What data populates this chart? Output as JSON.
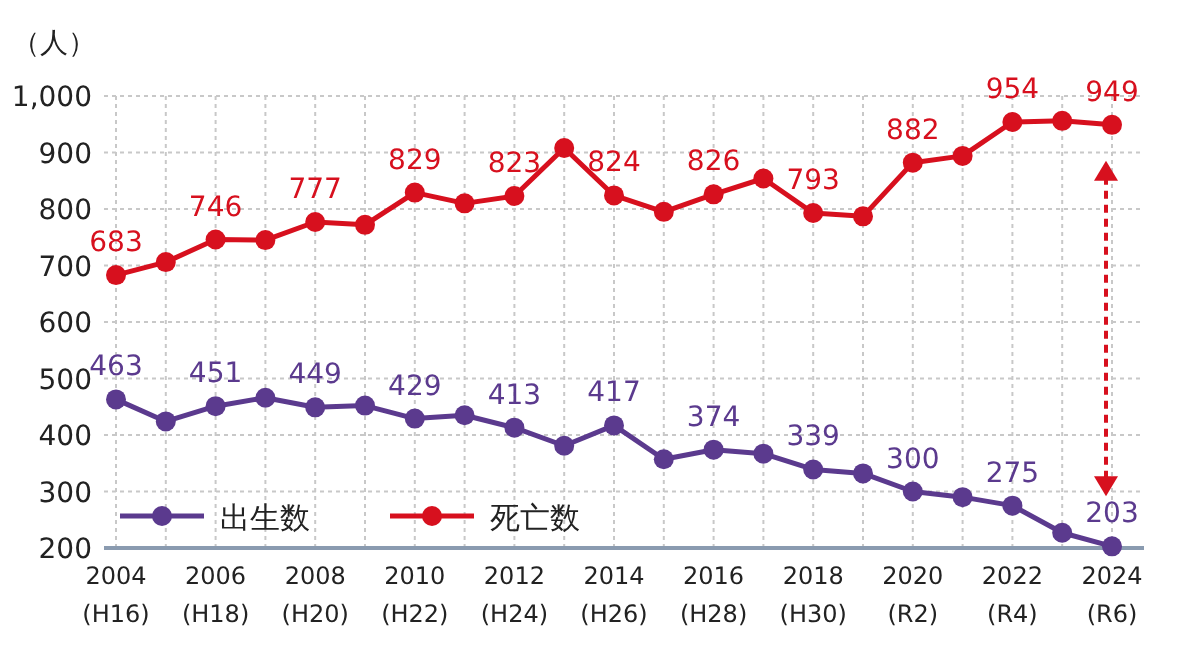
{
  "chart_data": {
    "type": "line",
    "ylabel": "（人）",
    "categories": [
      "2004\n(H16)",
      null,
      "2006\n(H18)",
      null,
      "2008\n(H20)",
      null,
      "2010\n(H22)",
      null,
      "2012\n(H24)",
      null,
      "2014\n(H26)",
      null,
      "2016\n(H28)",
      null,
      "2018\n(H30)",
      null,
      "2020\n(R2)",
      null,
      "2022\n(R4)",
      null,
      "2024\n(R6)"
    ],
    "series": [
      {
        "name": "出生数",
        "color": "#5b3a8e",
        "values": [
          463,
          424,
          451,
          466,
          449,
          452,
          429,
          435,
          413,
          381,
          417,
          357,
          374,
          367,
          339,
          332,
          300,
          290,
          275,
          227,
          203
        ],
        "value_labels": [
          "463",
          null,
          "451",
          null,
          "449",
          null,
          "429",
          null,
          "413",
          null,
          "417",
          null,
          "374",
          null,
          "339",
          null,
          "300",
          null,
          "275",
          null,
          "203"
        ]
      },
      {
        "name": "死亡数",
        "color": "#d7101e",
        "values": [
          683,
          706,
          746,
          745,
          777,
          772,
          829,
          810,
          823,
          908,
          824,
          795,
          826,
          854,
          793,
          787,
          882,
          894,
          954,
          956,
          949
        ],
        "value_labels": [
          "683",
          null,
          "746",
          null,
          "777",
          null,
          "829",
          null,
          "823",
          null,
          "824",
          null,
          "826",
          null,
          "793",
          null,
          "882",
          null,
          "954",
          null,
          "949"
        ]
      }
    ],
    "ylim": [
      200,
      1000
    ],
    "yticks": [
      200,
      300,
      400,
      500,
      600,
      700,
      800,
      900,
      {
        "value": 1000,
        "label": "1,000"
      }
    ],
    "grid": true,
    "legend": "bottom left",
    "marker": "circle",
    "line_style": "solid"
  }
}
